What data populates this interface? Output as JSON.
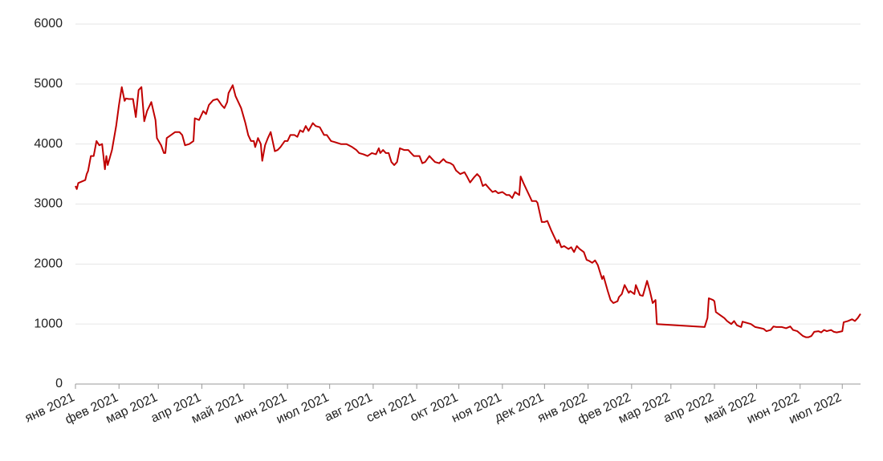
{
  "chart_data": {
    "type": "line",
    "color": "#c00000",
    "grid": true,
    "x": [
      0,
      1,
      2,
      5,
      7,
      8,
      9,
      11,
      13,
      15,
      17,
      19,
      21,
      22,
      23,
      26,
      29,
      31,
      33,
      35,
      36,
      38,
      41,
      43,
      45,
      47,
      49,
      51,
      54,
      57,
      58,
      61,
      63,
      64,
      65,
      68,
      71,
      74,
      76,
      78,
      81,
      84,
      85,
      88,
      91,
      93,
      95,
      98,
      101,
      102,
      104,
      106,
      108,
      109,
      112,
      114,
      116,
      118,
      121,
      123,
      125,
      127,
      128,
      130,
      132,
      133,
      135,
      137,
      139,
      142,
      144,
      146,
      149,
      151,
      153,
      156,
      158,
      160,
      162,
      164,
      166,
      169,
      171,
      174,
      177,
      179,
      182,
      185,
      189,
      193,
      197,
      200,
      202,
      205,
      208,
      211,
      214,
      216,
      217,
      219,
      221,
      223,
      225,
      227,
      229,
      231,
      234,
      237,
      239,
      241,
      245,
      247,
      249,
      252,
      254,
      256,
      259,
      262,
      264,
      267,
      269,
      271,
      274,
      277,
      279,
      281,
      284,
      286,
      288,
      290,
      292,
      295,
      297,
      299,
      301,
      304,
      307,
      309,
      311,
      313,
      316,
      317,
      319,
      321,
      324,
      325,
      328,
      329,
      332,
      334,
      336,
      339,
      341,
      343,
      344,
      346,
      348,
      351,
      353,
      355,
      357,
      359,
      362,
      364,
      366,
      368,
      370,
      372,
      375,
      376,
      379,
      381,
      383,
      386,
      387,
      389,
      391,
      394,
      395,
      398,
      399,
      402,
      404,
      407,
      409,
      411,
      413,
      414,
      448,
      450,
      451,
      454,
      455,
      456,
      459,
      462,
      464,
      467,
      469,
      471,
      474,
      475,
      478,
      481,
      484,
      488,
      490,
      492,
      495,
      497,
      499,
      503,
      506,
      509,
      511,
      514,
      517,
      518,
      520,
      522,
      524,
      526,
      529,
      531,
      533,
      535,
      538,
      540,
      542,
      546,
      547,
      550,
      553,
      555,
      557,
      559
    ],
    "values": [
      3300,
      3250,
      3350,
      3380,
      3400,
      3500,
      3550,
      3800,
      3800,
      4050,
      3980,
      4000,
      3580,
      3800,
      3650,
      3900,
      4300,
      4650,
      4950,
      4720,
      4760,
      4750,
      4750,
      4450,
      4900,
      4950,
      4380,
      4550,
      4700,
      4400,
      4100,
      3980,
      3850,
      3850,
      4100,
      4150,
      4200,
      4200,
      4150,
      3980,
      4000,
      4050,
      4430,
      4400,
      4550,
      4500,
      4650,
      4730,
      4750,
      4720,
      4650,
      4600,
      4700,
      4850,
      4980,
      4800,
      4700,
      4600,
      4350,
      4150,
      4050,
      4050,
      3950,
      4100,
      4000,
      3720,
      3980,
      4100,
      4200,
      3880,
      3900,
      3950,
      4050,
      4050,
      4150,
      4150,
      4120,
      4230,
      4200,
      4300,
      4220,
      4350,
      4300,
      4280,
      4150,
      4150,
      4050,
      4030,
      4000,
      4000,
      3950,
      3900,
      3850,
      3830,
      3800,
      3850,
      3830,
      3930,
      3850,
      3900,
      3850,
      3850,
      3700,
      3650,
      3700,
      3930,
      3900,
      3900,
      3850,
      3800,
      3800,
      3680,
      3700,
      3800,
      3750,
      3700,
      3680,
      3750,
      3700,
      3680,
      3650,
      3560,
      3500,
      3530,
      3450,
      3360,
      3450,
      3500,
      3450,
      3300,
      3330,
      3250,
      3200,
      3220,
      3180,
      3200,
      3150,
      3150,
      3100,
      3200,
      3150,
      3460,
      3350,
      3250,
      3100,
      3050,
      3050,
      3020,
      2700,
      2700,
      2720,
      2550,
      2450,
      2350,
      2400,
      2280,
      2300,
      2250,
      2280,
      2200,
      2300,
      2250,
      2200,
      2070,
      2050,
      2020,
      2060,
      1980,
      1750,
      1800,
      1550,
      1400,
      1350,
      1380,
      1450,
      1500,
      1650,
      1520,
      1550,
      1500,
      1650,
      1480,
      1470,
      1720,
      1550,
      1350,
      1400,
      1000,
      950,
      1100,
      1430,
      1400,
      1380,
      1200,
      1150,
      1100,
      1050,
      1000,
      1050,
      980,
      950,
      1040,
      1020,
      1000,
      950,
      930,
      920,
      880,
      900,
      960,
      950,
      950,
      930,
      960,
      900,
      880,
      820,
      800,
      780,
      780,
      800,
      870,
      880,
      860,
      900,
      880,
      900,
      870,
      860,
      880,
      1030,
      1050,
      1080,
      1050,
      1100,
      1170
    ],
    "xlim": [
      0,
      559
    ],
    "xticks": [
      {
        "value": 0,
        "label": "янв 2021"
      },
      {
        "value": 31,
        "label": "фев 2021"
      },
      {
        "value": 59,
        "label": "мар 2021"
      },
      {
        "value": 90,
        "label": "апр 2021"
      },
      {
        "value": 120,
        "label": "май 2021"
      },
      {
        "value": 151,
        "label": "июн 2021"
      },
      {
        "value": 181,
        "label": "июл 2021"
      },
      {
        "value": 212,
        "label": "авг 2021"
      },
      {
        "value": 243,
        "label": "сен 2021"
      },
      {
        "value": 273,
        "label": "окт 2021"
      },
      {
        "value": 304,
        "label": "ноя 2021"
      },
      {
        "value": 334,
        "label": "дек 2021"
      },
      {
        "value": 365,
        "label": "янв 2022"
      },
      {
        "value": 396,
        "label": "фев 2022"
      },
      {
        "value": 424,
        "label": "мар 2022"
      },
      {
        "value": 455,
        "label": "апр 2022"
      },
      {
        "value": 485,
        "label": "май 2022"
      },
      {
        "value": 516,
        "label": "июн 2022"
      },
      {
        "value": 546,
        "label": "июл 2022"
      }
    ],
    "ylim": [
      0,
      6000
    ],
    "yticks": [
      0,
      1000,
      2000,
      3000,
      4000,
      5000,
      6000
    ]
  }
}
